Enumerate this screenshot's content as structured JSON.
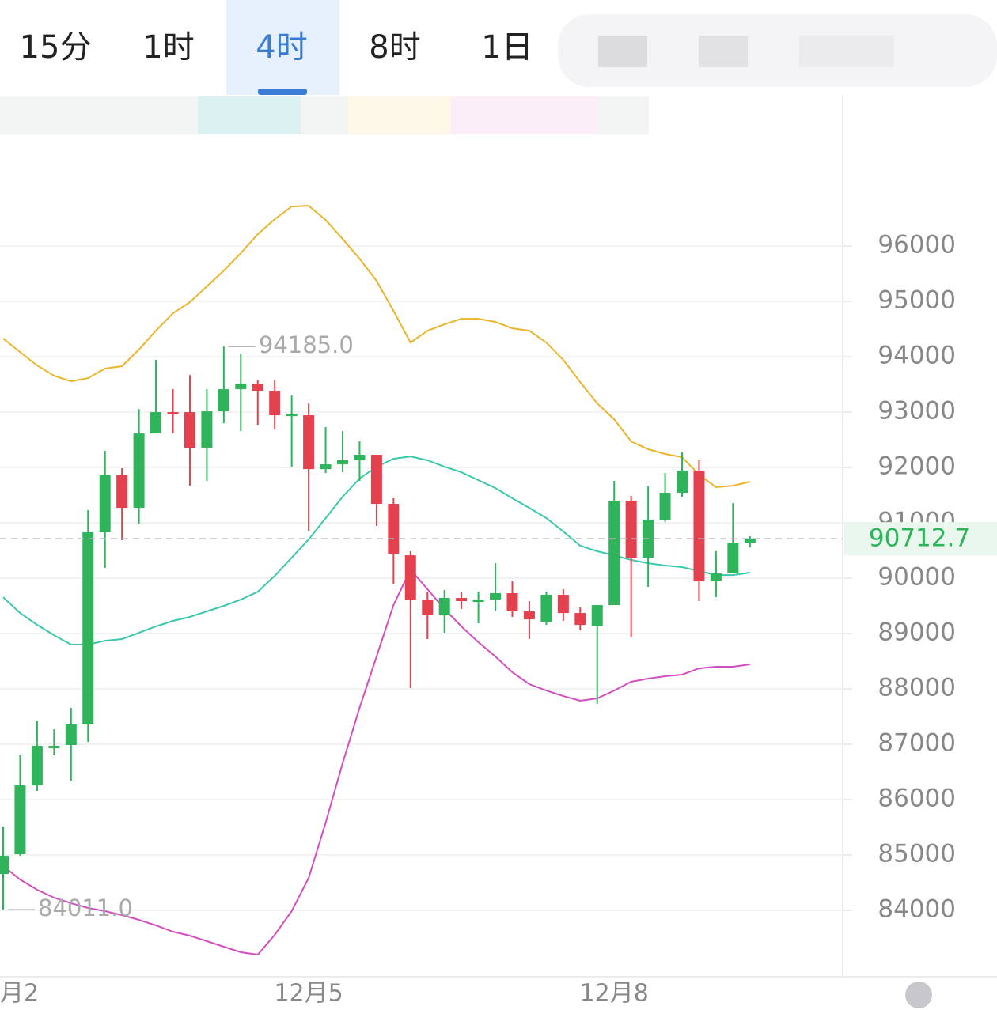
{
  "tabs": [
    "15分",
    "1时",
    "4时",
    "8时",
    "1日"
  ],
  "active_tab": 2,
  "chart_data": {
    "type": "candlestick",
    "x": [
      "月2",
      null,
      null,
      null,
      null,
      null,
      null,
      null,
      null,
      null,
      null,
      null,
      null,
      null,
      null,
      null,
      null,
      null,
      "12月5",
      null,
      null,
      null,
      null,
      null,
      null,
      null,
      null,
      null,
      null,
      null,
      null,
      null,
      null,
      null,
      null,
      null,
      "12月8",
      null,
      null,
      null,
      null,
      null,
      null,
      null,
      null
    ],
    "open": [
      84657,
      85014,
      86257,
      86929,
      86986,
      87357,
      90829,
      91871,
      91271,
      92614,
      93000,
      93000,
      92357,
      93014,
      93414,
      93514,
      93386,
      92929,
      92943,
      91971,
      92057,
      92129,
      92229,
      91343,
      90414,
      89614,
      89329,
      89643,
      89586,
      89614,
      89729,
      89400,
      89214,
      89700,
      89371,
      89129,
      89514,
      91400,
      90371,
      91057,
      91543,
      91943,
      89943,
      90086,
      90643
    ],
    "high": [
      85514,
      86800,
      87414,
      87271,
      87657,
      91229,
      92300,
      91986,
      93057,
      93943,
      93414,
      93671,
      93414,
      94185,
      94057,
      93586,
      93586,
      93300,
      93157,
      92729,
      92657,
      92471,
      92229,
      91443,
      90486,
      89757,
      89786,
      89757,
      89757,
      90271,
      89943,
      89586,
      89757,
      89800,
      89471,
      89514,
      91757,
      91486,
      91657,
      91900,
      92271,
      92129,
      90486,
      91357,
      90757
    ],
    "low": [
      84011,
      84986,
      86157,
      86800,
      86343,
      87043,
      90186,
      90686,
      90986,
      92614,
      92614,
      91671,
      91757,
      92800,
      92657,
      92771,
      92686,
      92014,
      90843,
      91900,
      91914,
      91757,
      90943,
      89900,
      88014,
      88900,
      89014,
      89443,
      89186,
      89414,
      89300,
      88900,
      89157,
      89229,
      89057,
      87729,
      89514,
      88929,
      89843,
      91014,
      91471,
      89586,
      89657,
      90086,
      90557
    ],
    "close": [
      84986,
      86257,
      86971,
      86971,
      87357,
      90829,
      91871,
      91271,
      92614,
      93000,
      92971,
      92357,
      93014,
      93414,
      93514,
      93386,
      92943,
      92971,
      91971,
      92057,
      92129,
      92229,
      91343,
      90443,
      89614,
      89329,
      89643,
      89586,
      89614,
      89729,
      89400,
      89257,
      89700,
      89371,
      89157,
      89514,
      91400,
      90371,
      91057,
      91543,
      91943,
      89943,
      90086,
      90643,
      90712.7
    ],
    "up_color": "#2fb35b",
    "down_color": "#e5404e",
    "lines": [
      {
        "color": "#ebb52b",
        "values": [
          94329,
          94086,
          93843,
          93657,
          93557,
          93614,
          93786,
          93829,
          94129,
          94471,
          94786,
          94986,
          95271,
          95557,
          95871,
          96214,
          96486,
          96714,
          96729,
          96471,
          96129,
          95771,
          95371,
          94829,
          94257,
          94471,
          94586,
          94686,
          94686,
          94629,
          94514,
          94471,
          94257,
          93943,
          93543,
          93157,
          92871,
          92471,
          92329,
          92243,
          92186,
          91871,
          91643,
          91671,
          91743
        ]
      },
      {
        "color": "#3cc8ad",
        "values": [
          89657,
          89371,
          89157,
          88971,
          88800,
          88800,
          88871,
          88900,
          89014,
          89129,
          89229,
          89300,
          89400,
          89500,
          89614,
          89757,
          90043,
          90371,
          90700,
          91086,
          91471,
          91800,
          92014,
          92157,
          92200,
          92129,
          92014,
          91914,
          91771,
          91629,
          91443,
          91271,
          91086,
          90843,
          90586,
          90486,
          90414,
          90329,
          90271,
          90229,
          90200,
          90129,
          90057,
          90057,
          90100
        ]
      },
      {
        "color": "#d24fc2",
        "values": [
          84800,
          84557,
          84371,
          84229,
          84129,
          84043,
          83986,
          83914,
          83829,
          83729,
          83614,
          83543,
          83443,
          83343,
          83243,
          83200,
          83557,
          83986,
          84586,
          85586,
          86657,
          87657,
          88586,
          89514,
          90157,
          89800,
          89443,
          89129,
          88843,
          88586,
          88300,
          88086,
          87971,
          87871,
          87786,
          87829,
          87971,
          88129,
          88186,
          88229,
          88257,
          88371,
          88400,
          88400,
          88443
        ]
      }
    ],
    "annotations": [
      {
        "label": "94185.0",
        "value": 94185
      },
      {
        "label": "84011.0",
        "value": 84011
      }
    ],
    "last_price": 90712.7,
    "ylim": [
      82800,
      98730
    ],
    "yticks": [
      84000,
      85000,
      86000,
      87000,
      88000,
      89000,
      90000,
      91000,
      92000,
      93000,
      94000,
      95000,
      96000
    ],
    "grid": true
  }
}
